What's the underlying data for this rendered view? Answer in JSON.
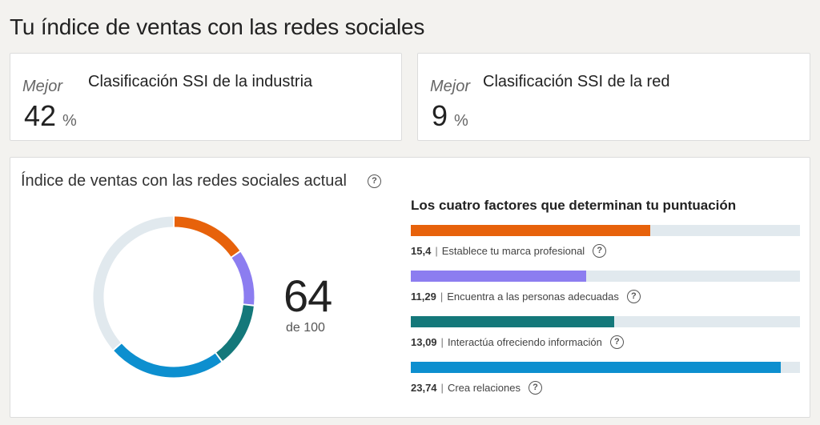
{
  "page": {
    "title": "Tu índice de ventas con las redes sociales"
  },
  "rankings": {
    "industry": {
      "label_top": "Mejor",
      "title": "Clasificación SSI de la industria",
      "value": "42",
      "unit": "%"
    },
    "network": {
      "label_top": "Mejor",
      "title": "Clasificación SSI de la red",
      "value": "9",
      "unit": "%"
    }
  },
  "ssi": {
    "title": "Índice de ventas con las redes sociales actual",
    "score": "64",
    "score_max": "de 100",
    "factors_title": "Los cuatro factores que determinan tu puntuación",
    "factors": [
      {
        "score": "15,4",
        "value": 15.4,
        "max": 25,
        "label": "Establece tu marca profesional",
        "color": "#e7620b"
      },
      {
        "score": "11,29",
        "value": 11.29,
        "max": 25,
        "label": "Encuentra a las personas adecuadas",
        "color": "#8c7df0"
      },
      {
        "score": "13,09",
        "value": 13.09,
        "max": 25,
        "label": "Interactúa ofreciendo información",
        "color": "#14787a"
      },
      {
        "score": "23,74",
        "value": 23.74,
        "max": 25,
        "label": "Crea relaciones",
        "color": "#0d8fcf"
      }
    ],
    "donut_track_color": "#e1e9ee"
  },
  "icons": {
    "help": "question-circle-icon"
  }
}
